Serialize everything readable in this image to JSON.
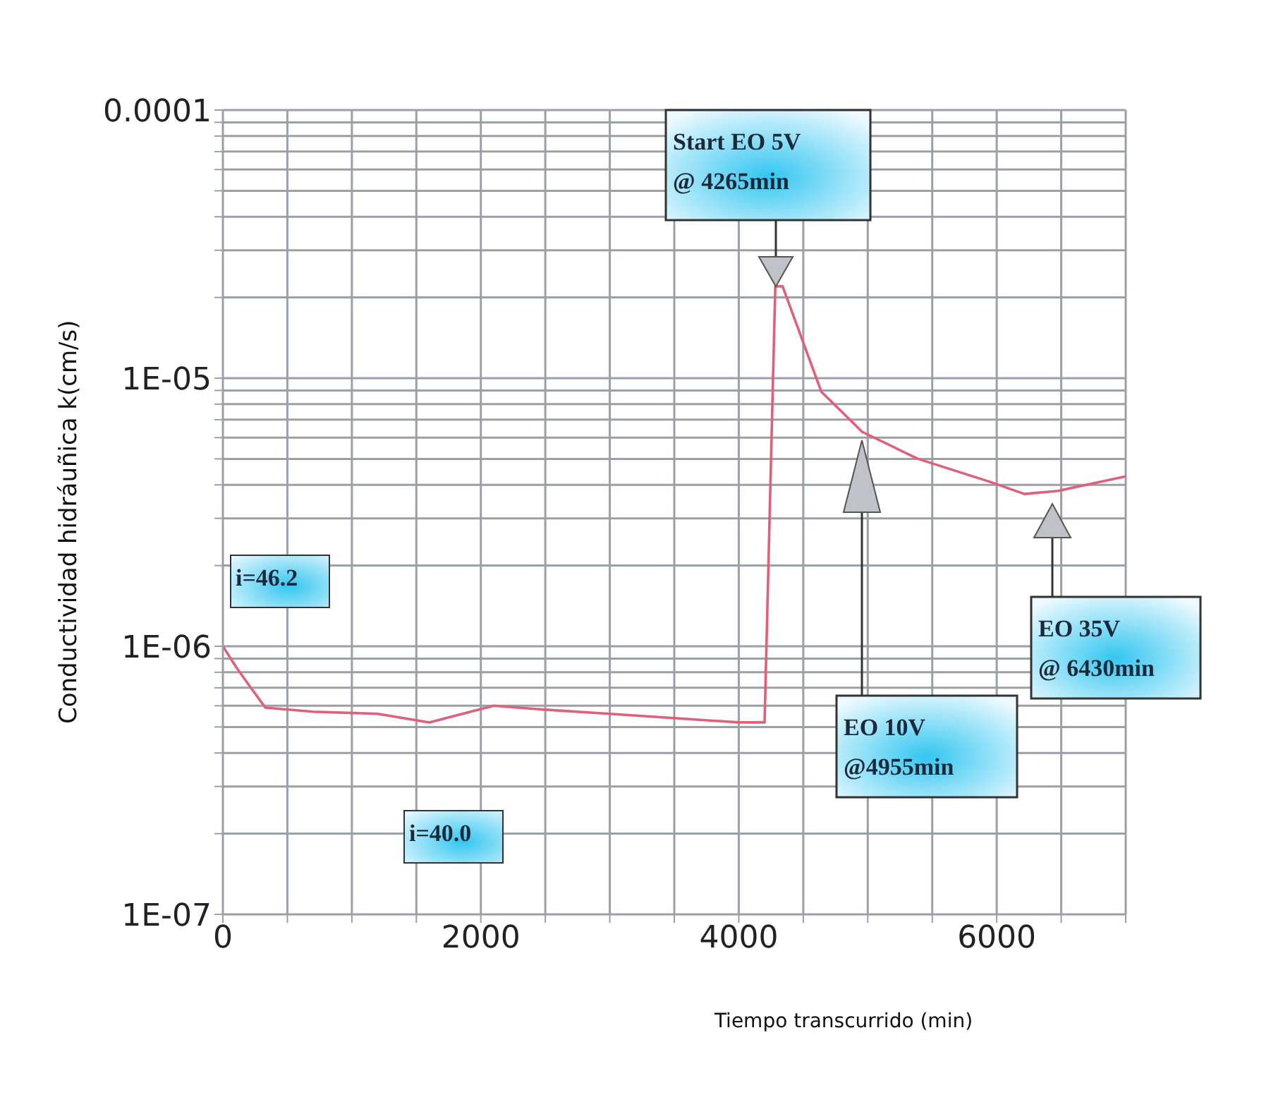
{
  "chart_data": {
    "type": "line",
    "xlabel": "Tiempo transcurrido (min)",
    "ylabel": "Conductividad hidráuñica k(cm/s)",
    "x": [
      0,
      100,
      190,
      330,
      700,
      1200,
      1600,
      2100,
      2500,
      3000,
      4000,
      4200,
      4283,
      4340,
      4640,
      4958,
      5390,
      5951,
      6214,
      6476,
      7000
    ],
    "series": [
      {
        "color": "#e0607a",
        "values": [
          1e-06,
          8.4e-07,
          7.3e-07,
          5.9e-07,
          5.7e-07,
          5.6e-07,
          5.2e-07,
          6e-07,
          5.8e-07,
          5.6e-07,
          5.2e-07,
          5.2e-07,
          2.2e-05,
          2.2e-05,
          8.9e-06,
          6.3e-06,
          5e-06,
          4.1e-06,
          3.7e-06,
          3.8e-06,
          4.3e-06
        ]
      }
    ],
    "log": "y",
    "xlim": [
      0,
      7000
    ],
    "ylim": [
      1e-07,
      0.0001
    ],
    "xticks": [
      0,
      {
        "value": 500,
        "label": null
      },
      {
        "value": 1000,
        "label": null
      },
      {
        "value": 1500,
        "label": null
      },
      2000,
      {
        "value": 2500,
        "label": null
      },
      {
        "value": 3000,
        "label": null
      },
      {
        "value": 3500,
        "label": null
      },
      4000,
      {
        "value": 4500,
        "label": null
      },
      {
        "value": 5000,
        "label": null
      },
      {
        "value": 5500,
        "label": null
      },
      6000,
      {
        "value": 6500,
        "label": null
      },
      {
        "value": 7000,
        "label": null
      }
    ],
    "yticks": [
      {
        "value": 1e-07,
        "label": "1E-07"
      },
      {
        "value": 2e-07,
        "label": null
      },
      {
        "value": 3e-07,
        "label": null
      },
      {
        "value": 4e-07,
        "label": null
      },
      {
        "value": 5e-07,
        "label": null
      },
      {
        "value": 6e-07,
        "label": null
      },
      {
        "value": 7e-07,
        "label": null
      },
      {
        "value": 8e-07,
        "label": null
      },
      {
        "value": 9e-07,
        "label": null
      },
      {
        "value": 1e-06,
        "label": "1E-06"
      },
      {
        "value": 2e-06,
        "label": null
      },
      {
        "value": 3e-06,
        "label": null
      },
      {
        "value": 4e-06,
        "label": null
      },
      {
        "value": 5e-06,
        "label": null
      },
      {
        "value": 6e-06,
        "label": null
      },
      {
        "value": 7e-06,
        "label": null
      },
      {
        "value": 8e-06,
        "label": null
      },
      {
        "value": 9e-06,
        "label": null
      },
      {
        "value": 1e-05,
        "label": "1E-05"
      },
      {
        "value": 2e-05,
        "label": null
      },
      {
        "value": 3e-05,
        "label": null
      },
      {
        "value": 4e-05,
        "label": null
      },
      {
        "value": 5e-05,
        "label": null
      },
      {
        "value": 6e-05,
        "label": null
      },
      {
        "value": 7e-05,
        "label": null
      },
      {
        "value": 8e-05,
        "label": null
      },
      {
        "value": 9e-05,
        "label": null
      },
      {
        "value": 0.0001,
        "label": "0.0001"
      }
    ],
    "grid": true,
    "marker": "none",
    "line_style": "solid",
    "annotations": [
      "Start EO 5V\n@ 4265min",
      "EO 10V\n@4955min",
      "EO 35V\n@ 6430min",
      "i=46.2",
      "i=40.0"
    ]
  }
}
